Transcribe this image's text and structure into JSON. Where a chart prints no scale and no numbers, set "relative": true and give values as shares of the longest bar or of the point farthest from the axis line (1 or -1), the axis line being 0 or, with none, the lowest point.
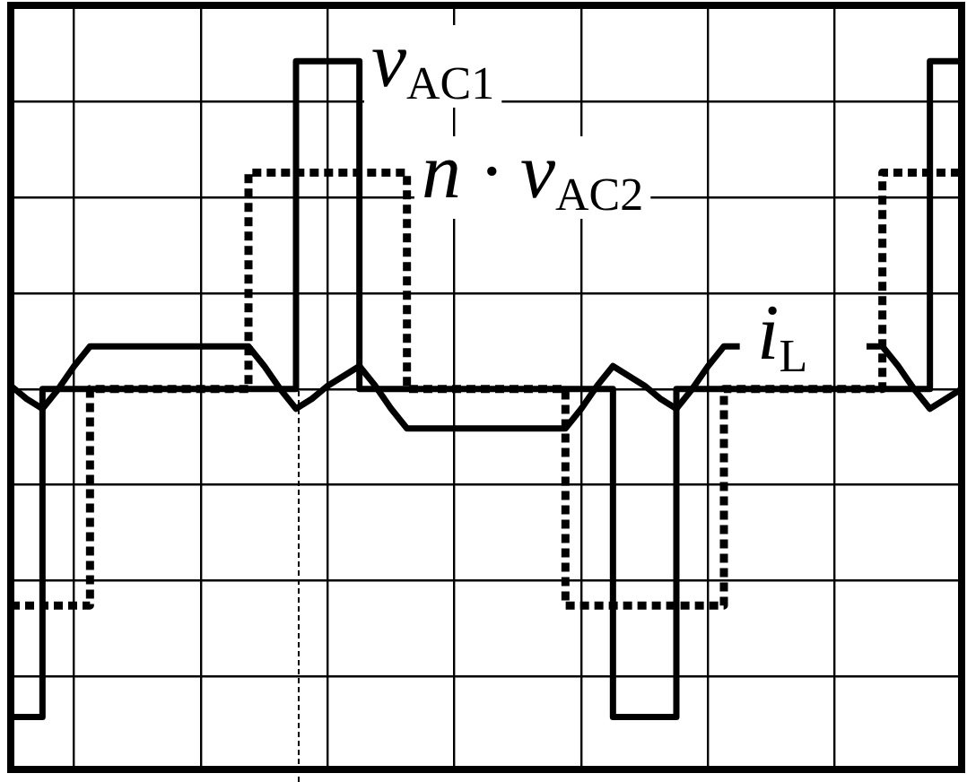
{
  "chart_data": {
    "type": "line",
    "relative": true,
    "grid": true,
    "legend": false,
    "categories": [
      null,
      null,
      null,
      null,
      null,
      null,
      null,
      null,
      null,
      null,
      null,
      null,
      null,
      null,
      null,
      null,
      null,
      null,
      null,
      null,
      null,
      null,
      null,
      null,
      null,
      null,
      null,
      null,
      null,
      null,
      null,
      null,
      null,
      null,
      null,
      null,
      null,
      null,
      null,
      null,
      null,
      null,
      null,
      null,
      null,
      null,
      null,
      null,
      null,
      null,
      null,
      null,
      null,
      null,
      null,
      null,
      null,
      null,
      null,
      null,
      null
    ],
    "series": [
      {
        "name": "v$_{AC1}$",
        "type": "step",
        "color": "#000000",
        "line_style": "solid",
        "values": [
          -1,
          -1,
          0,
          0,
          0,
          0,
          0,
          0,
          0,
          0,
          0,
          0,
          0,
          0,
          0,
          0,
          0,
          0,
          1,
          1,
          1,
          1,
          0,
          0,
          0,
          0,
          0,
          0,
          0,
          0,
          0,
          0,
          0,
          0,
          0,
          0,
          0,
          0,
          -1,
          -1,
          -1,
          -1,
          0,
          0,
          0,
          0,
          0,
          0,
          0,
          0,
          0,
          0,
          0,
          0,
          0,
          0,
          0,
          0,
          1,
          1,
          1
        ]
      },
      {
        "name": "n · v$_{AC2}$",
        "type": "step",
        "color": "#000000",
        "line_style": "dotted",
        "values": [
          -0.66,
          -0.66,
          -0.66,
          -0.66,
          -0.66,
          0,
          0,
          0,
          0,
          0,
          0,
          0,
          0,
          0,
          0,
          0.66,
          0.66,
          0.66,
          0.66,
          0.66,
          0.66,
          0.66,
          0.66,
          0.66,
          0.66,
          0,
          0,
          0,
          0,
          0,
          0,
          0,
          0,
          0,
          0,
          -0.66,
          -0.66,
          -0.66,
          -0.66,
          -0.66,
          -0.66,
          -0.66,
          -0.66,
          -0.66,
          -0.66,
          0,
          0,
          0,
          0,
          0,
          0,
          0,
          0,
          0,
          0,
          0.66,
          0.66,
          0.66,
          0.66,
          0.66,
          0.66
        ]
      },
      {
        "name": "i$_{L}$",
        "type": "line",
        "color": "#000000",
        "line_style": "solid",
        "values": [
          0.01,
          -0.03,
          -0.06,
          0,
          0.07,
          0.13,
          0.13,
          0.13,
          0.13,
          0.13,
          0.13,
          0.13,
          0.13,
          0.13,
          0.13,
          0.13,
          0.07,
          0,
          -0.06,
          -0.03,
          0.01,
          0.04,
          0.07,
          0.01,
          -0.06,
          -0.12,
          -0.12,
          -0.12,
          -0.12,
          -0.12,
          -0.12,
          -0.12,
          -0.12,
          -0.12,
          -0.12,
          -0.12,
          -0.06,
          0.01,
          0.07,
          0.04,
          0.01,
          -0.03,
          -0.06,
          0,
          0.07,
          0.13,
          0.13,
          null,
          null,
          null,
          null,
          null,
          null,
          null,
          0.13,
          0.13,
          0.07,
          0,
          -0.06,
          -0.03,
          0
        ]
      }
    ]
  }
}
